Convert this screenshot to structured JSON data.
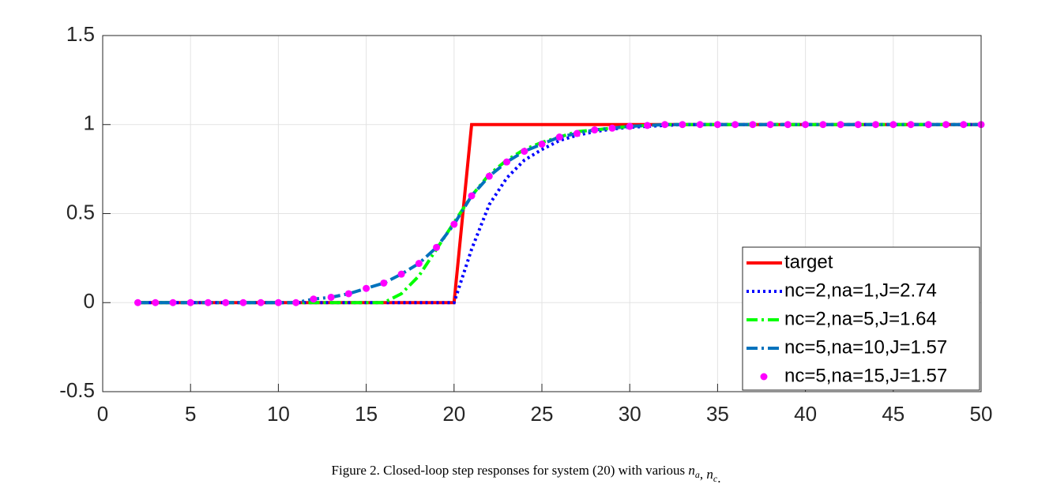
{
  "chart_data": {
    "type": "line",
    "x": [
      2,
      3,
      4,
      5,
      6,
      7,
      8,
      9,
      10,
      11,
      12,
      13,
      14,
      15,
      16,
      17,
      18,
      19,
      20,
      21,
      22,
      23,
      24,
      25,
      26,
      27,
      28,
      29,
      30,
      31,
      32,
      33,
      34,
      35,
      36,
      37,
      38,
      39,
      40,
      41,
      42,
      43,
      44,
      45,
      46,
      47,
      48,
      49,
      50
    ],
    "series": [
      {
        "name": "target",
        "color": "#ff0000",
        "style": "solid",
        "values": [
          0,
          0,
          0,
          0,
          0,
          0,
          0,
          0,
          0,
          0,
          0,
          0,
          0,
          0,
          0,
          0,
          0,
          0,
          0,
          1,
          1,
          1,
          1,
          1,
          1,
          1,
          1,
          1,
          1,
          1,
          1,
          1,
          1,
          1,
          1,
          1,
          1,
          1,
          1,
          1,
          1,
          1,
          1,
          1,
          1,
          1,
          1,
          1,
          1
        ]
      },
      {
        "name": "nc=2,na=1,J=2.74",
        "color": "#0000ff",
        "style": "dotted",
        "values": [
          0,
          0,
          0,
          0,
          0,
          0,
          0,
          0,
          0,
          0,
          0,
          0,
          0,
          0,
          0,
          0,
          0,
          0,
          0,
          0.3,
          0.55,
          0.7,
          0.8,
          0.86,
          0.91,
          0.94,
          0.96,
          0.975,
          0.985,
          0.99,
          0.995,
          1,
          1,
          1,
          1,
          1,
          1,
          1,
          1,
          1,
          1,
          1,
          1,
          1,
          1,
          1,
          1,
          1,
          1
        ]
      },
      {
        "name": "nc=2,na=5,J=1.64",
        "color": "#00ff00",
        "style": "dashdot",
        "values": [
          0,
          0,
          0,
          0,
          0,
          0,
          0,
          0,
          0,
          0,
          0,
          0,
          0,
          0,
          0,
          0.05,
          0.15,
          0.3,
          0.45,
          0.6,
          0.72,
          0.8,
          0.86,
          0.9,
          0.93,
          0.96,
          0.97,
          0.98,
          0.99,
          0.995,
          1,
          1,
          1,
          1,
          1,
          1,
          1,
          1,
          1,
          1,
          1,
          1,
          1,
          1,
          1,
          1,
          1,
          1,
          1
        ]
      },
      {
        "name": "nc=5,na=10,J=1.57",
        "color": "#0072bd",
        "style": "dashdot",
        "values": [
          0,
          0,
          0,
          0,
          0,
          0,
          0,
          0,
          0,
          0,
          0.02,
          0.03,
          0.05,
          0.08,
          0.11,
          0.16,
          0.22,
          0.31,
          0.44,
          0.6,
          0.71,
          0.79,
          0.85,
          0.89,
          0.93,
          0.95,
          0.97,
          0.98,
          0.99,
          0.995,
          1,
          1,
          1,
          1,
          1,
          1,
          1,
          1,
          1,
          1,
          1,
          1,
          1,
          1,
          1,
          1,
          1,
          1,
          1
        ]
      },
      {
        "name": "nc=5,na=15,J=1.57",
        "color": "#ff00ff",
        "style": "markers",
        "values": [
          0,
          0,
          0,
          0,
          0,
          0,
          0,
          0,
          0,
          0,
          0.02,
          0.03,
          0.05,
          0.08,
          0.11,
          0.16,
          0.22,
          0.31,
          0.44,
          0.6,
          0.71,
          0.79,
          0.85,
          0.89,
          0.93,
          0.95,
          0.97,
          0.98,
          0.99,
          0.995,
          1,
          1,
          1,
          1,
          1,
          1,
          1,
          1,
          1,
          1,
          1,
          1,
          1,
          1,
          1,
          1,
          1,
          1,
          1
        ]
      }
    ],
    "xlim": [
      0,
      50
    ],
    "xticks": [
      0,
      5,
      10,
      15,
      20,
      25,
      30,
      35,
      40,
      45,
      50
    ],
    "ylim": [
      -0.5,
      1.5
    ],
    "yticks": [
      -0.5,
      0,
      0.5,
      1,
      1.5
    ],
    "grid": true,
    "legend": "lower right",
    "caption": [
      {
        "text": "Figure 2.  Closed-loop step responses for system (20) with various "
      },
      {
        "text": "n",
        "sub": "a"
      },
      {
        "text": ", "
      },
      {
        "text": "n",
        "sub": "c"
      },
      {
        "text": "."
      }
    ]
  }
}
